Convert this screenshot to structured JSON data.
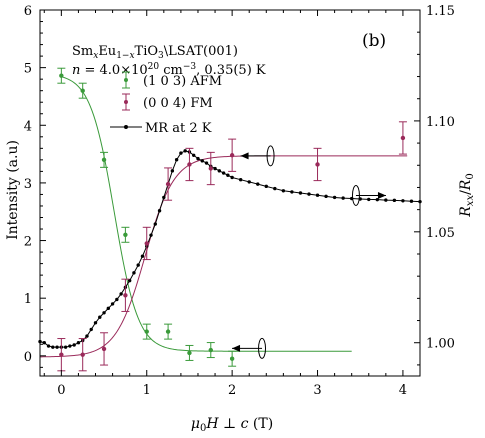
{
  "chart_data": {
    "type": "scatter",
    "xlabel": "μ₀H ⊥ c (T)",
    "ylabel_left": "Intensity (a.u)",
    "ylabel_right": "Rxx/R0",
    "xlim": [
      -0.25,
      4.2
    ],
    "ylim_left": [
      -0.35,
      6
    ],
    "ylim_right": [
      0.985,
      1.15
    ],
    "x_ticks": [
      0,
      1,
      2,
      3,
      4
    ],
    "y_ticks_left": [
      0,
      1,
      2,
      3,
      4,
      5,
      6
    ],
    "y_ticks_right": [
      1.0,
      1.05,
      1.1,
      1.15
    ],
    "annotation_line1": "SmxEu1−xTiO3\\LSAT(001)",
    "annotation_line2": "n = 4.0×10²⁰ cm⁻³, 0.35(5) K",
    "panel_label": "(b)",
    "grid": false,
    "legend_position": "top-center",
    "series": [
      {
        "name": "(1 0 3) AFM",
        "color": "#3a9a3a",
        "axis": "left",
        "points": [
          {
            "x": 0.0,
            "y": 4.86,
            "err": 0.13
          },
          {
            "x": 0.25,
            "y": 4.6,
            "err": 0.13
          },
          {
            "x": 0.5,
            "y": 3.4,
            "err": 0.13
          },
          {
            "x": 0.75,
            "y": 2.1,
            "err": 0.13
          },
          {
            "x": 1.0,
            "y": 0.42,
            "err": 0.13
          },
          {
            "x": 1.25,
            "y": 0.42,
            "err": 0.13
          },
          {
            "x": 1.5,
            "y": 0.05,
            "err": 0.13
          },
          {
            "x": 1.75,
            "y": 0.1,
            "err": 0.13
          },
          {
            "x": 2.0,
            "y": -0.05,
            "err": 0.13
          }
        ],
        "fit": {
          "type": "sigmoid-down",
          "high": 4.9,
          "low": 0.08,
          "center": 0.62,
          "width": 0.14,
          "xmin": 0.0,
          "xmax": 3.4
        }
      },
      {
        "name": "(0 0 4) FM",
        "color": "#9a2a5a",
        "axis": "left",
        "points": [
          {
            "x": 0.0,
            "y": 0.02,
            "err": 0.28
          },
          {
            "x": 0.25,
            "y": 0.02,
            "err": 0.28
          },
          {
            "x": 0.5,
            "y": 0.12,
            "err": 0.28
          },
          {
            "x": 0.75,
            "y": 1.05,
            "err": 0.28
          },
          {
            "x": 1.0,
            "y": 1.95,
            "err": 0.28
          },
          {
            "x": 1.25,
            "y": 2.98,
            "err": 0.28
          },
          {
            "x": 1.5,
            "y": 3.32,
            "err": 0.28
          },
          {
            "x": 1.75,
            "y": 3.25,
            "err": 0.28
          },
          {
            "x": 2.0,
            "y": 3.48,
            "err": 0.28
          },
          {
            "x": 3.0,
            "y": 3.32,
            "err": 0.28
          },
          {
            "x": 4.0,
            "y": 3.78,
            "err": 0.28
          }
        ],
        "fit": {
          "type": "sigmoid-up",
          "high": 3.47,
          "low": -0.02,
          "center": 0.98,
          "width": 0.17,
          "xmin": -0.25,
          "xmax": 4.05
        }
      },
      {
        "name": "MR at 2 K",
        "color": "#000000",
        "axis": "right",
        "style": "line-dots",
        "x": [
          -0.25,
          -0.2,
          -0.15,
          -0.1,
          -0.05,
          0.0,
          0.05,
          0.1,
          0.15,
          0.2,
          0.25,
          0.3,
          0.35,
          0.4,
          0.45,
          0.5,
          0.55,
          0.6,
          0.65,
          0.7,
          0.75,
          0.8,
          0.85,
          0.9,
          0.95,
          1.0,
          1.05,
          1.1,
          1.15,
          1.2,
          1.25,
          1.3,
          1.35,
          1.4,
          1.45,
          1.5,
          1.55,
          1.6,
          1.65,
          1.7,
          1.75,
          1.8,
          1.85,
          1.9,
          1.95,
          2.0,
          2.1,
          2.2,
          2.3,
          2.4,
          2.5,
          2.6,
          2.7,
          2.8,
          2.9,
          3.0,
          3.1,
          3.2,
          3.3,
          3.4,
          3.5,
          3.6,
          3.7,
          3.8,
          3.9,
          4.0,
          4.1,
          4.2
        ],
        "y": [
          1.0005,
          1.0,
          0.9985,
          0.998,
          0.998,
          0.998,
          0.998,
          0.9985,
          0.999,
          1.0,
          1.001,
          1.003,
          1.006,
          1.009,
          1.0115,
          1.0135,
          1.0155,
          1.0175,
          1.0195,
          1.022,
          1.025,
          1.028,
          1.0315,
          1.035,
          1.039,
          1.0435,
          1.0485,
          1.0535,
          1.0595,
          1.0655,
          1.0715,
          1.0775,
          1.0825,
          1.0855,
          1.0865,
          1.086,
          1.0845,
          1.083,
          1.082,
          1.081,
          1.0795,
          1.0785,
          1.0775,
          1.0765,
          1.0755,
          1.0745,
          1.0735,
          1.0725,
          1.0715,
          1.0705,
          1.0695,
          1.0685,
          1.068,
          1.0675,
          1.067,
          1.0665,
          1.066,
          1.0655,
          1.0652,
          1.065,
          1.0648,
          1.0646,
          1.0645,
          1.0643,
          1.0642,
          1.064,
          1.0638,
          1.0636
        ]
      }
    ]
  },
  "tick_labels": {
    "x": [
      "0",
      "1",
      "2",
      "3",
      "4"
    ],
    "left": [
      "0",
      "1",
      "2",
      "3",
      "4",
      "5",
      "6"
    ],
    "right": [
      "1.00",
      "1.05",
      "1.10",
      "1.15"
    ]
  }
}
